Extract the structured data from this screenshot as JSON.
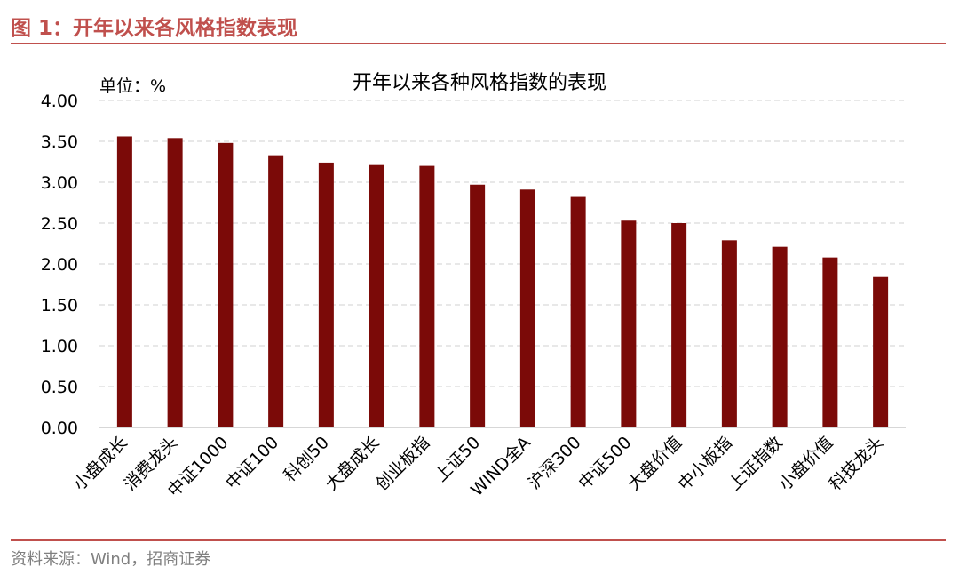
{
  "figure": {
    "header": "图 1：开年以来各风格指数表现",
    "source": "资料来源：Wind，招商证券"
  },
  "colors": {
    "bar": "#7b0a08",
    "accent": "#c0504d",
    "grid": "#d9d9d9",
    "text": "#000000"
  },
  "chart_data": {
    "type": "bar",
    "title": "开年以来各种风格指数的表现",
    "unit_label": "单位：%",
    "xlabel": "",
    "ylabel": "",
    "ylim": [
      0,
      4
    ],
    "yticks": [
      "0.00",
      "0.50",
      "1.00",
      "1.50",
      "2.00",
      "2.50",
      "3.00",
      "3.50",
      "4.00"
    ],
    "grid": true,
    "categories": [
      "小盘成长",
      "消费龙头",
      "中证1000",
      "中证100",
      "科创50",
      "大盘成长",
      "创业板指",
      "上证50",
      "WIND全A",
      "沪深300",
      "中证500",
      "大盘价值",
      "中小板指",
      "上证指数",
      "小盘价值",
      "科技龙头"
    ],
    "values": [
      3.56,
      3.54,
      3.48,
      3.33,
      3.24,
      3.21,
      3.2,
      2.97,
      2.91,
      2.82,
      2.53,
      2.5,
      2.29,
      2.21,
      2.08,
      1.84
    ]
  }
}
